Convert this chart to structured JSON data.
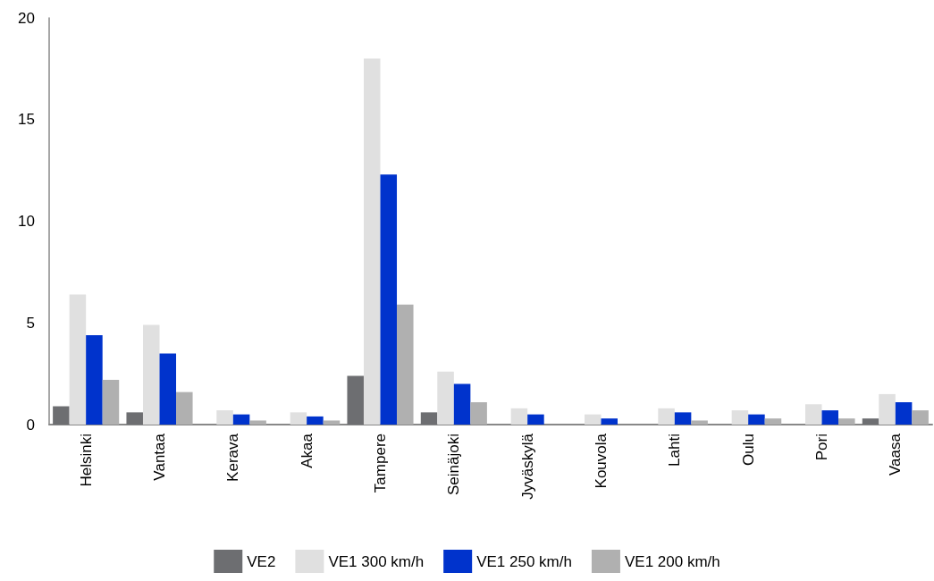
{
  "chart_data": {
    "type": "bar",
    "categories": [
      "Helsinki",
      "Vantaa",
      "Kerava",
      "Akaa",
      "Tampere",
      "Seinäjoki",
      "Jyväskylä",
      "Kouvola",
      "Lahti",
      "Oulu",
      "Pori",
      "Vaasa"
    ],
    "series": [
      {
        "name": "VE2",
        "color": "#6d6e71",
        "values": [
          0.9,
          0.6,
          0,
          0,
          2.4,
          0.6,
          0,
          0,
          0,
          0,
          0,
          0.3
        ]
      },
      {
        "name": "VE1 300 km/h",
        "color": "#e0e0e0",
        "values": [
          6.4,
          4.9,
          0.7,
          0.6,
          18,
          2.6,
          0.8,
          0.5,
          0.8,
          0.7,
          1.0,
          1.5
        ]
      },
      {
        "name": "VE1 250 km/h",
        "color": "#0033cc",
        "values": [
          4.4,
          3.5,
          0.5,
          0.4,
          12.3,
          2.0,
          0.5,
          0.3,
          0.6,
          0.5,
          0.7,
          1.1
        ]
      },
      {
        "name": "VE1 200 km/h",
        "color": "#b0b0b0",
        "values": [
          2.2,
          1.6,
          0.2,
          0.2,
          5.9,
          1.1,
          0,
          0,
          0.2,
          0.3,
          0.3,
          0.7
        ]
      }
    ],
    "ylim": [
      0,
      20
    ],
    "yticks": [
      0,
      5,
      10,
      15,
      20
    ],
    "grid": false,
    "legend": "bottom"
  }
}
